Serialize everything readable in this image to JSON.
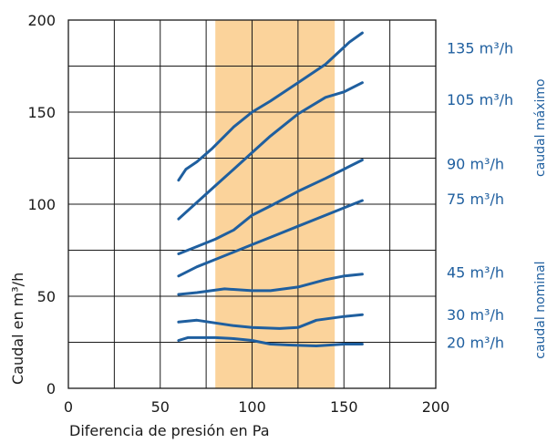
{
  "chart_data": {
    "type": "line",
    "xlabel": "Diferencia de presión en Pa",
    "ylabel": "Caudal en m³/h",
    "xlim": [
      0,
      200
    ],
    "ylim": [
      0,
      200
    ],
    "x_ticks": [
      "0",
      "50",
      "100",
      "150",
      "200"
    ],
    "y_ticks": [
      "0",
      "50",
      "100",
      "150",
      "200"
    ],
    "grid": true,
    "highlight_band": {
      "x_from": 80,
      "x_to": 145,
      "color": "#fbd39b"
    },
    "line_color": "#1f5f9f",
    "series": [
      {
        "name": "135 m³/h",
        "points": [
          [
            60,
            113
          ],
          [
            64,
            119
          ],
          [
            70,
            123
          ],
          [
            78,
            130
          ],
          [
            90,
            142
          ],
          [
            100,
            150
          ],
          [
            110,
            156
          ],
          [
            125,
            166
          ],
          [
            140,
            176
          ],
          [
            153,
            188
          ],
          [
            160,
            193
          ]
        ]
      },
      {
        "name": "105 m³/h",
        "points": [
          [
            60,
            92
          ],
          [
            70,
            101
          ],
          [
            80,
            110
          ],
          [
            90,
            119
          ],
          [
            100,
            128
          ],
          [
            110,
            137
          ],
          [
            125,
            149
          ],
          [
            140,
            158
          ],
          [
            150,
            161
          ],
          [
            160,
            166
          ]
        ]
      },
      {
        "name": "90 m³/h",
        "points": [
          [
            60,
            73
          ],
          [
            70,
            77
          ],
          [
            80,
            81
          ],
          [
            90,
            86
          ],
          [
            100,
            94
          ],
          [
            110,
            99
          ],
          [
            125,
            107
          ],
          [
            140,
            114
          ],
          [
            150,
            119
          ],
          [
            160,
            124
          ]
        ]
      },
      {
        "name": "75 m³/h",
        "points": [
          [
            60,
            61
          ],
          [
            70,
            66
          ],
          [
            80,
            70
          ],
          [
            90,
            74
          ],
          [
            100,
            78
          ],
          [
            110,
            82
          ],
          [
            125,
            88
          ],
          [
            140,
            94
          ],
          [
            150,
            98
          ],
          [
            160,
            102
          ]
        ]
      },
      {
        "name": "45 m³/h",
        "points": [
          [
            60,
            51
          ],
          [
            70,
            52
          ],
          [
            85,
            54
          ],
          [
            100,
            53
          ],
          [
            110,
            53
          ],
          [
            125,
            55
          ],
          [
            140,
            59
          ],
          [
            150,
            61
          ],
          [
            160,
            62
          ]
        ]
      },
      {
        "name": "30 m³/h",
        "points": [
          [
            60,
            36
          ],
          [
            70,
            37
          ],
          [
            90,
            34
          ],
          [
            100,
            33
          ],
          [
            115,
            32.5
          ],
          [
            125,
            33
          ],
          [
            135,
            37
          ],
          [
            150,
            39
          ],
          [
            160,
            40
          ]
        ]
      },
      {
        "name": "20 m³/h",
        "points": [
          [
            60,
            26
          ],
          [
            65,
            27.5
          ],
          [
            80,
            27.5
          ],
          [
            90,
            27
          ],
          [
            100,
            26
          ],
          [
            110,
            24
          ],
          [
            120,
            23.5
          ],
          [
            135,
            23
          ],
          [
            150,
            24
          ],
          [
            160,
            24
          ]
        ]
      }
    ],
    "label_values": [
      185,
      157,
      122,
      103,
      63,
      40,
      25
    ],
    "side_labels": [
      {
        "text": "caudal máximo",
        "from": 112,
        "to": 171
      },
      {
        "text": "caudal nominal",
        "from": 20,
        "to": 65
      }
    ]
  }
}
